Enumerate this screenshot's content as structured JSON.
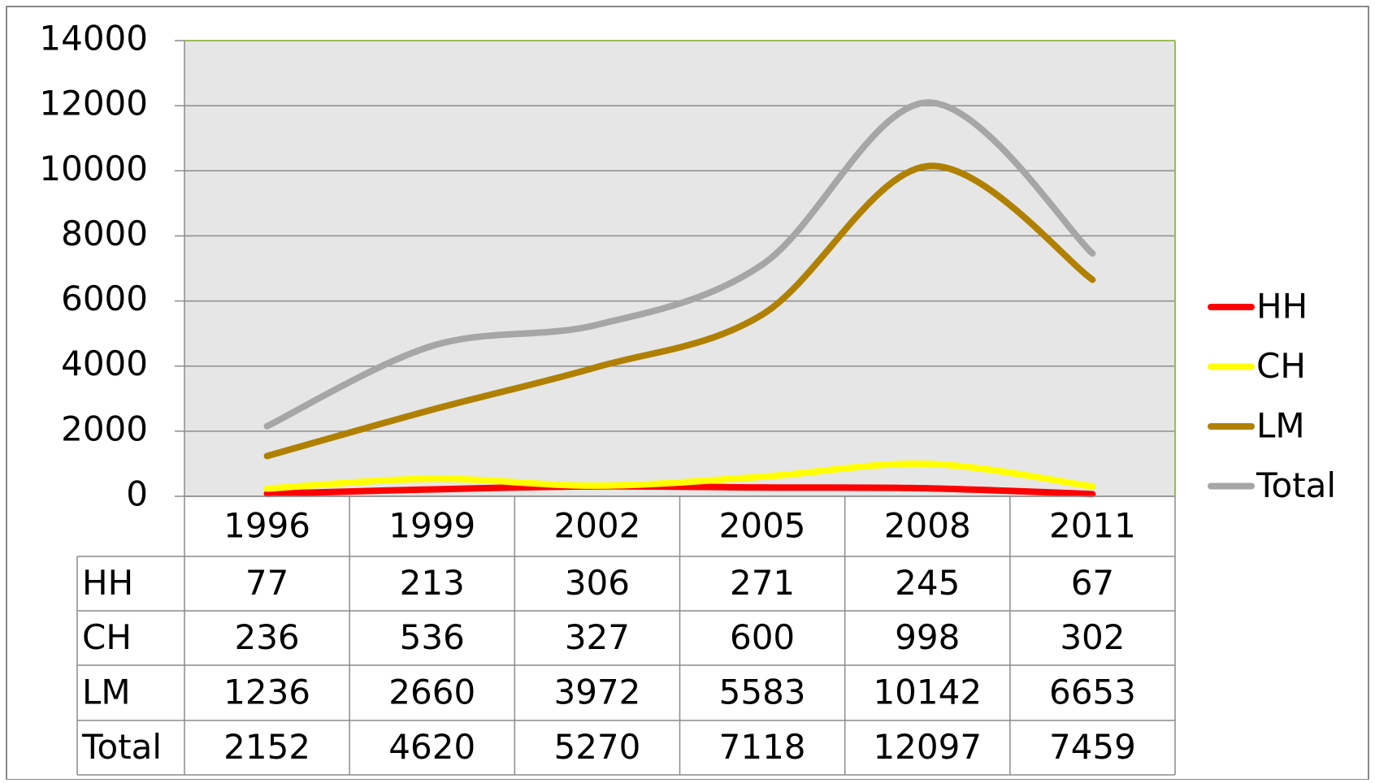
{
  "chart_data": {
    "type": "line",
    "smooth": true,
    "categories": [
      "1996",
      "1999",
      "2002",
      "2005",
      "2008",
      "2011"
    ],
    "series": [
      {
        "name": "HH",
        "color": "#ff0000",
        "values": [
          77,
          213,
          306,
          271,
          245,
          67
        ]
      },
      {
        "name": "CH",
        "color": "#ffff00",
        "values": [
          236,
          536,
          327,
          600,
          998,
          302
        ]
      },
      {
        "name": "LM",
        "color": "#b08000",
        "values": [
          1236,
          2660,
          3972,
          5583,
          10142,
          6653
        ]
      },
      {
        "name": "Total",
        "color": "#a6a6a6",
        "values": [
          2152,
          4620,
          5270,
          7118,
          12097,
          7459
        ]
      }
    ],
    "ylim": [
      0,
      14000
    ],
    "yticks": [
      0,
      2000,
      4000,
      6000,
      8000,
      10000,
      12000,
      14000
    ],
    "grid": true,
    "legend": "right",
    "data_table": true
  }
}
